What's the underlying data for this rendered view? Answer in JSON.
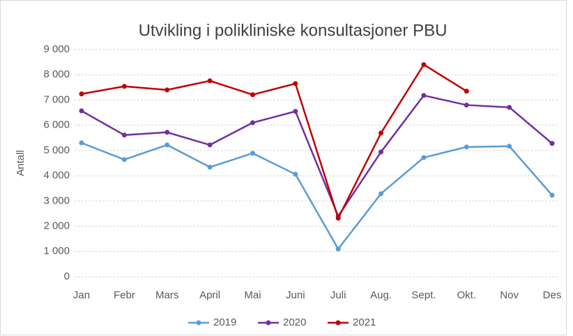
{
  "chart_data": {
    "type": "line",
    "title": "Utvikling i polikliniske konsultasjoner PBU",
    "y_label": "Antall",
    "categories": [
      "Jan",
      "Febr",
      "Mars",
      "April",
      "Mai",
      "Juni",
      "Juli",
      "Aug.",
      "Sept.",
      "Okt.",
      "Nov",
      "Des"
    ],
    "series": [
      {
        "name": "2019",
        "color": "#5b9bd5",
        "values": [
          5300,
          4640,
          5220,
          4340,
          4890,
          4060,
          1100,
          3290,
          4720,
          5140,
          5170,
          3230
        ]
      },
      {
        "name": "2020",
        "color": "#7030a0",
        "values": [
          6570,
          5610,
          5720,
          5220,
          6100,
          6550,
          2400,
          4940,
          7180,
          6800,
          6710,
          5280
        ]
      },
      {
        "name": "2021",
        "color": "#c00000",
        "values": [
          7240,
          7540,
          7400,
          7760,
          7210,
          7650,
          2320,
          5690,
          8400,
          7350,
          null,
          null
        ]
      }
    ],
    "ylim": [
      0,
      9000
    ],
    "yticks": [
      0,
      {
        "value": 1000,
        "label": "1 000"
      },
      {
        "value": 2000,
        "label": "2 000"
      },
      {
        "value": 3000,
        "label": "3 000"
      },
      {
        "value": 4000,
        "label": "4 000"
      },
      {
        "value": 5000,
        "label": "5 000"
      },
      {
        "value": 6000,
        "label": "6 000"
      },
      {
        "value": 7000,
        "label": "7 000"
      },
      {
        "value": 8000,
        "label": "8 000"
      },
      {
        "value": 9000,
        "label": "9 000"
      }
    ],
    "grid": true,
    "legend": "bottom"
  }
}
